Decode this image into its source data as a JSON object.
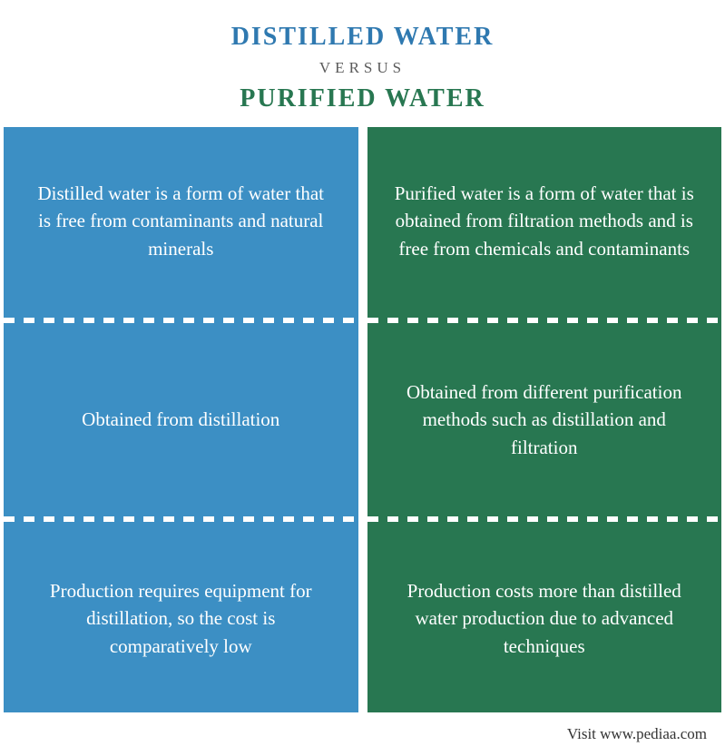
{
  "header": {
    "title_left": "DISTILLED WATER",
    "versus": "VERSUS",
    "title_right": "PURIFIED WATER",
    "title_fontsize": 28,
    "versus_fontsize": 17,
    "left_color": "#2f79b0",
    "right_color": "#287751"
  },
  "columns": {
    "left": {
      "bg_color": "#3c8fc4",
      "divider_color": "#ffffff",
      "cells": [
        "Distilled water is a form of water that is free from contaminants and natural minerals",
        "Obtained from distillation",
        "Production requires equipment for distillation, so the cost is comparatively low"
      ]
    },
    "right": {
      "bg_color": "#287751",
      "divider_color": "#ffffff",
      "cells": [
        "Purified water is a form of water that is obtained from filtration methods and is free from chemicals and contaminants",
        "Obtained from different purification methods such as distillation and filtration",
        "Production costs more than distilled water production due to advanced techniques"
      ]
    }
  },
  "cell_fontsize": 21,
  "cell_lineheight": 1.45,
  "footer": {
    "text": "Visit www.pediaa.com",
    "fontsize": 17
  }
}
